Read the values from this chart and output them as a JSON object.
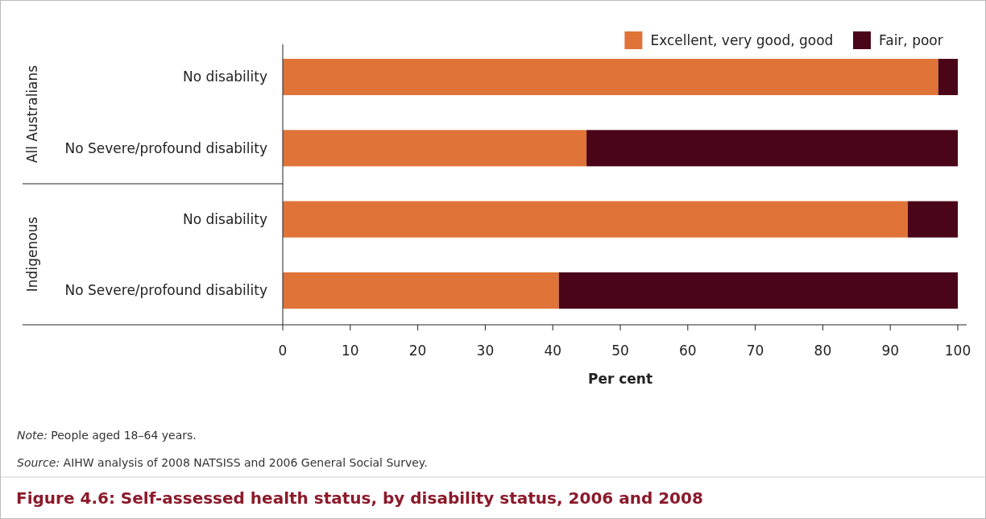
{
  "chart_data": {
    "type": "bar",
    "orientation": "horizontal",
    "stacked": true,
    "title": "Figure 4.6: Self-assessed health status, by disability status, 2006 and 2008",
    "xlabel": "Per cent",
    "categories": [
      "No disability",
      "No Severe/profound disability",
      "No disability",
      "No Severe/profound disability"
    ],
    "series": [
      {
        "name": "Excellent, very good, good",
        "color": "#e07338",
        "values": [
          97.1,
          45.0,
          92.6,
          40.9
        ]
      },
      {
        "name": "Fair, poor",
        "color": "#4a0519",
        "values": [
          2.9,
          55.0,
          7.4,
          59.1
        ]
      }
    ],
    "xlim": [
      0,
      100
    ],
    "xticks": [
      0,
      10,
      20,
      30,
      40,
      50,
      60,
      70,
      80,
      90,
      100
    ],
    "grid": false,
    "legend": "top right",
    "annotations": [
      "All Australians",
      "Indigenous",
      "Note: People aged 18–64 years.",
      "Source: AIHW analysis of 2008 NATSISS and 2006 General Social Survey."
    ]
  }
}
